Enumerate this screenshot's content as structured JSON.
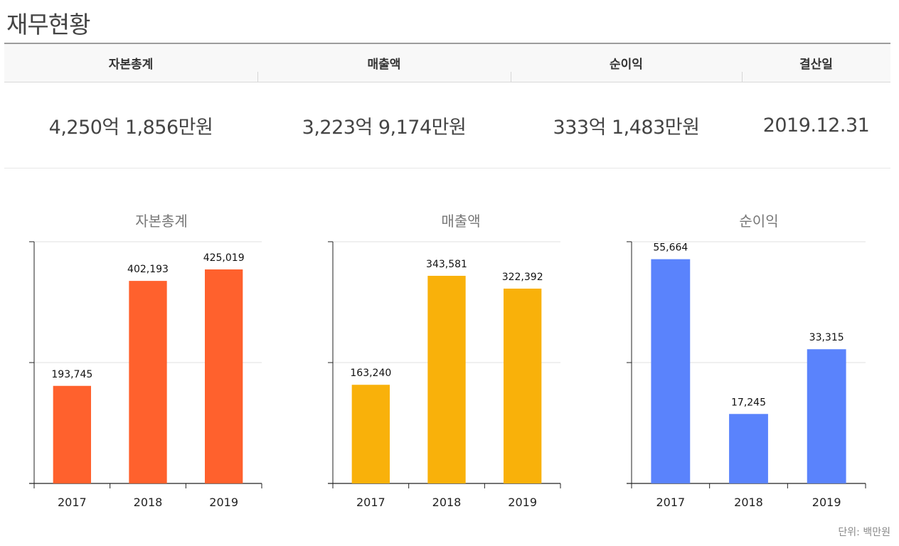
{
  "page_title": "재무현황",
  "summary": {
    "headers": [
      "자본총계",
      "매출액",
      "순이익",
      "결산일"
    ],
    "values": [
      "4,250억 1,856만원",
      "3,223억 9,174만원",
      "333억 1,483만원",
      "2019.12.31"
    ]
  },
  "chart_data": [
    {
      "type": "bar",
      "title": "자본총계",
      "categories": [
        "2017",
        "2018",
        "2019"
      ],
      "values": [
        193745,
        402193,
        425019
      ],
      "labels": [
        "193,745",
        "402,193",
        "425,019"
      ],
      "ylim": [
        0,
        480000
      ],
      "grid": true,
      "color": "#ff612d"
    },
    {
      "type": "bar",
      "title": "매출액",
      "categories": [
        "2017",
        "2018",
        "2019"
      ],
      "values": [
        163240,
        343581,
        322392
      ],
      "labels": [
        "163,240",
        "343,581",
        "322,392"
      ],
      "ylim": [
        0,
        400000
      ],
      "grid": true,
      "color": "#f9b10a"
    },
    {
      "type": "bar",
      "title": "순이익",
      "categories": [
        "2017",
        "2018",
        "2019"
      ],
      "values": [
        55664,
        17245,
        33315
      ],
      "labels": [
        "55,664",
        "17,245",
        "33,315"
      ],
      "ylim": [
        0,
        60000
      ],
      "grid": true,
      "color": "#5a83fc"
    }
  ],
  "unit_label": "단위: 백만원"
}
